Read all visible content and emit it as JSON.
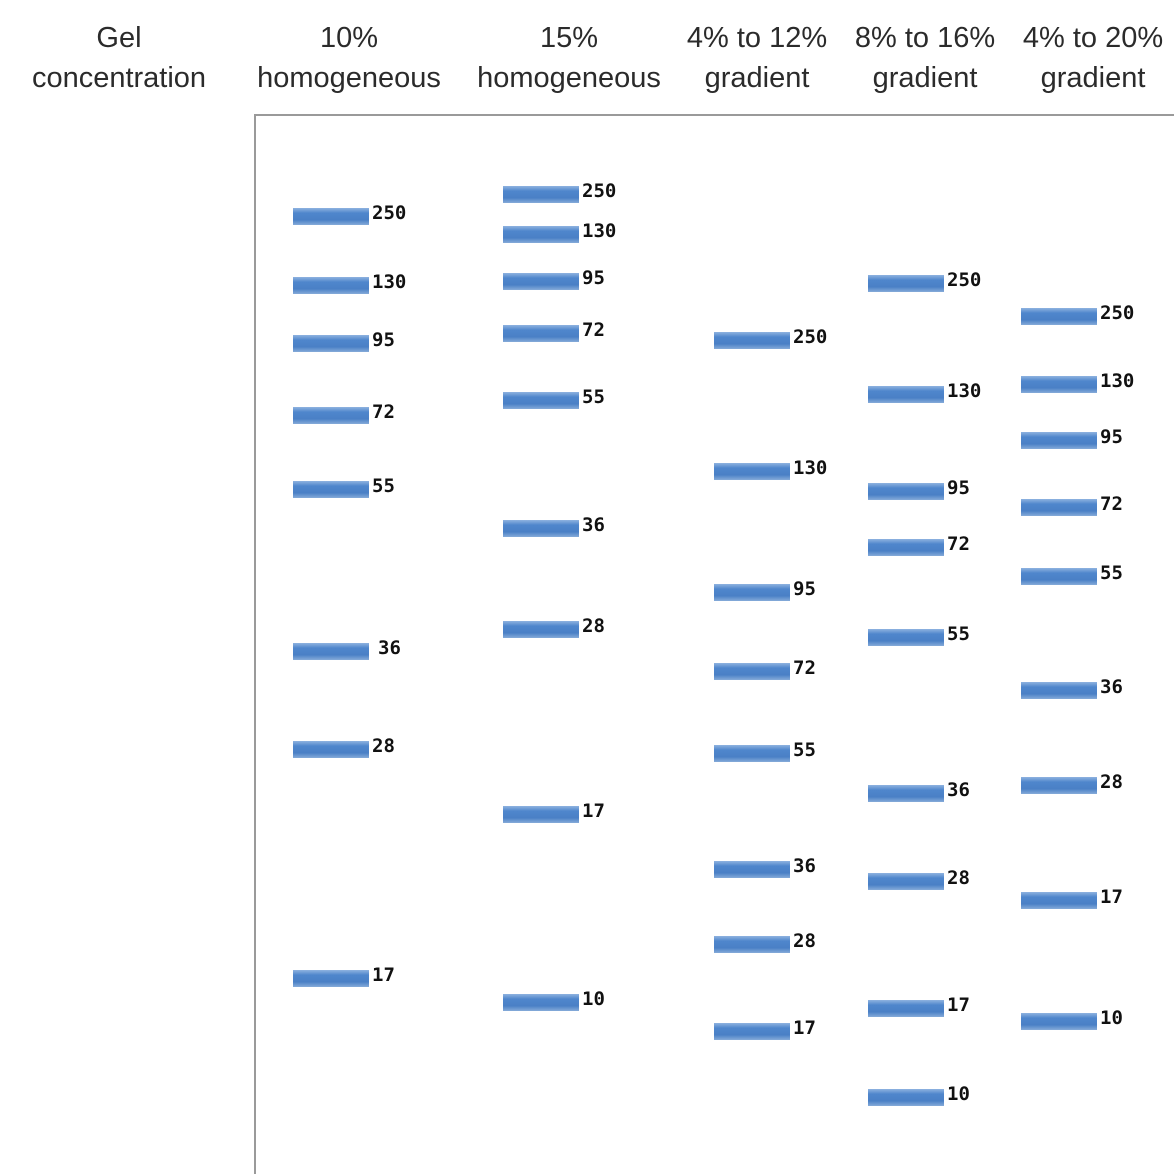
{
  "header": {
    "row_label": [
      "Gel",
      "concentration"
    ],
    "lanes": [
      [
        "10%",
        "homogeneous"
      ],
      [
        "15%",
        "homogeneous"
      ],
      [
        "4% to 12%",
        "gradient"
      ],
      [
        "8% to 16%",
        "gradient"
      ],
      [
        "4% to 20%",
        "gradient"
      ]
    ]
  },
  "lanes": [
    {
      "bands": [
        "250",
        "130",
        "95",
        "72",
        "55",
        "36",
        "28",
        "17"
      ]
    },
    {
      "bands": [
        "250",
        "130",
        "95",
        "72",
        "55",
        "36",
        "28",
        "17",
        "10"
      ]
    },
    {
      "bands": [
        "250",
        "130",
        "95",
        "72",
        "55",
        "36",
        "28",
        "17"
      ]
    },
    {
      "bands": [
        "250",
        "130",
        "95",
        "72",
        "55",
        "36",
        "28",
        "17",
        "10"
      ]
    },
    {
      "bands": [
        "250",
        "130",
        "95",
        "72",
        "55",
        "36",
        "28",
        "17",
        "10"
      ]
    }
  ],
  "colors": {
    "band": "#4f86cc",
    "frame": "#9a9a9a",
    "text": "#2b2b2b"
  }
}
